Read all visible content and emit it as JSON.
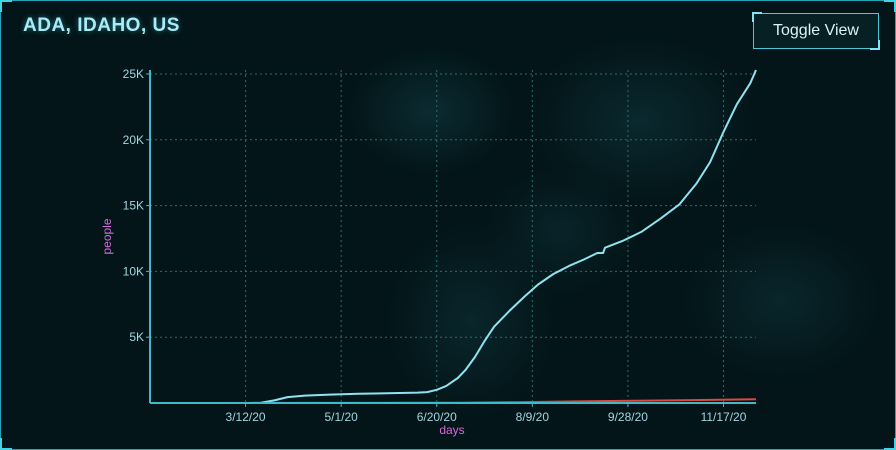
{
  "header": {
    "title": "ADA, IDAHO, US",
    "toggle_label": "Toggle View"
  },
  "colors": {
    "confirmed_line": "#8fe3f0",
    "deaths_line": "#e0483d",
    "axis": "#3fb8c8",
    "grid": "#2e6f6a",
    "axis_title": "#d56bd8"
  },
  "chart_data": {
    "type": "line",
    "xlabel": "days",
    "ylabel": "people",
    "x_range": [
      "1/22/20",
      "12/4/20"
    ],
    "ylim": [
      0,
      25300
    ],
    "x_ticks": [
      "3/12/20",
      "5/1/20",
      "6/20/20",
      "8/9/20",
      "9/28/20",
      "11/17/20"
    ],
    "y_ticks": [
      {
        "value": 5000,
        "label": "5K"
      },
      {
        "value": 10000,
        "label": "10K"
      },
      {
        "value": 15000,
        "label": "15K"
      },
      {
        "value": 20000,
        "label": "20K"
      },
      {
        "value": 25000,
        "label": "25K"
      }
    ],
    "grid": true,
    "series": [
      {
        "color": "#8fe3f0",
        "points": [
          [
            "1/22/20",
            0
          ],
          [
            "3/12/20",
            0
          ],
          [
            "3/20/20",
            20
          ],
          [
            "3/27/20",
            200
          ],
          [
            "4/3/20",
            450
          ],
          [
            "4/12/20",
            560
          ],
          [
            "4/25/20",
            640
          ],
          [
            "5/10/20",
            700
          ],
          [
            "5/25/20",
            740
          ],
          [
            "6/10/20",
            790
          ],
          [
            "6/15/20",
            830
          ],
          [
            "6/20/20",
            1000
          ],
          [
            "6/25/20",
            1300
          ],
          [
            "7/1/20",
            1900
          ],
          [
            "7/5/20",
            2500
          ],
          [
            "7/10/20",
            3500
          ],
          [
            "7/15/20",
            4700
          ],
          [
            "7/20/20",
            5800
          ],
          [
            "7/28/20",
            7000
          ],
          [
            "8/5/20",
            8100
          ],
          [
            "8/12/20",
            9000
          ],
          [
            "8/20/20",
            9800
          ],
          [
            "8/28/20",
            10400
          ],
          [
            "9/5/20",
            10900
          ],
          [
            "9/12/20",
            11400
          ],
          [
            "9/15/20",
            11400
          ],
          [
            "9/16/20",
            11800
          ],
          [
            "9/25/20",
            12300
          ],
          [
            "10/5/20",
            13000
          ],
          [
            "10/15/20",
            14000
          ],
          [
            "10/25/20",
            15100
          ],
          [
            "11/3/20",
            16700
          ],
          [
            "11/10/20",
            18300
          ],
          [
            "11/17/20",
            20600
          ],
          [
            "11/24/20",
            22700
          ],
          [
            "12/1/20",
            24300
          ],
          [
            "12/4/20",
            25300
          ]
        ]
      },
      {
        "color": "#e0483d",
        "points": [
          [
            "1/22/20",
            0
          ],
          [
            "3/20/20",
            0
          ],
          [
            "4/15/20",
            10
          ],
          [
            "6/1/20",
            15
          ],
          [
            "7/1/20",
            25
          ],
          [
            "8/1/20",
            60
          ],
          [
            "9/1/20",
            120
          ],
          [
            "10/1/20",
            170
          ],
          [
            "11/1/20",
            220
          ],
          [
            "12/4/20",
            290
          ]
        ]
      }
    ]
  }
}
